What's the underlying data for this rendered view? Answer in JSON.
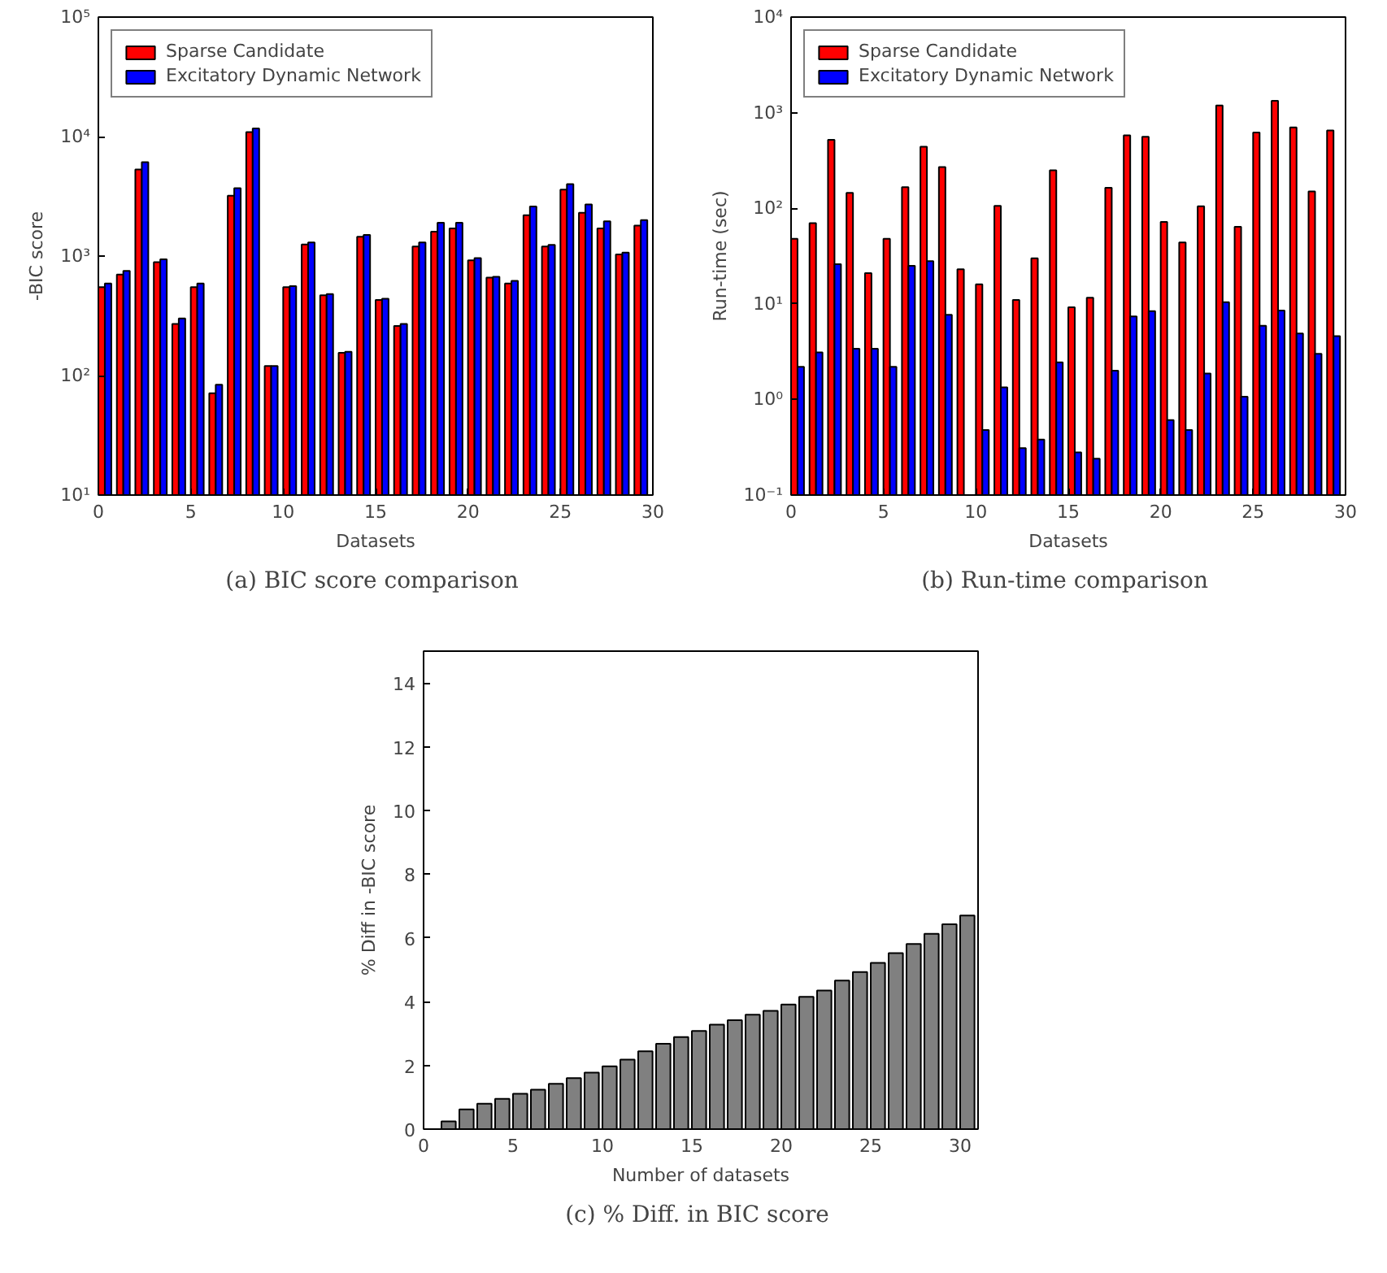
{
  "chart_data": [
    {
      "type": "bar",
      "xlabel": "Datasets",
      "ylabel": "-BIC score",
      "annotations": [
        "(a)  BIC score comparison"
      ],
      "log": "y",
      "legend": "top left",
      "grid": false,
      "x": [
        0,
        1,
        2,
        3,
        4,
        5,
        6,
        7,
        8,
        9,
        10,
        11,
        12,
        13,
        14,
        15,
        16,
        17,
        18,
        19,
        20,
        21,
        22,
        23,
        24,
        25,
        26,
        27,
        28,
        29
      ],
      "xlim": [
        0,
        30
      ],
      "xticks": [
        0,
        5,
        10,
        15,
        20,
        25,
        30
      ],
      "ylim": [
        10,
        100000
      ],
      "yticks": [
        {
          "value": 10,
          "label": "10¹"
        },
        {
          "value": 100,
          "label": "10²"
        },
        {
          "value": 1000,
          "label": "10³"
        },
        {
          "value": 10000,
          "label": "10⁴"
        },
        {
          "value": 100000,
          "label": "10⁵"
        }
      ],
      "series": [
        {
          "name": "Sparse Candidate",
          "color": "#ff0000",
          "values": [
            550,
            700,
            5300,
            890,
            270,
            550,
            71,
            3200,
            10900,
            120,
            550,
            1250,
            470,
            155,
            1450,
            430,
            260,
            1200,
            1600,
            1700,
            920,
            660,
            590,
            2200,
            1200,
            3600,
            2300,
            1700,
            1030,
            1800
          ]
        },
        {
          "name": "Excitatory Dynamic Network",
          "color": "#0000ff",
          "values": [
            590,
            750,
            6100,
            940,
            300,
            590,
            84,
            3700,
            11700,
            120,
            560,
            1300,
            480,
            158,
            1500,
            440,
            270,
            1300,
            1900,
            1900,
            960,
            670,
            620,
            2600,
            1240,
            4000,
            2700,
            1950,
            1070,
            2000
          ]
        }
      ]
    },
    {
      "type": "bar",
      "xlabel": "Datasets",
      "ylabel": "Run-time (sec)",
      "annotations": [
        "(b)  Run-time comparison"
      ],
      "log": "y",
      "legend": "top left",
      "grid": false,
      "x": [
        0,
        1,
        2,
        3,
        4,
        5,
        6,
        7,
        8,
        9,
        10,
        11,
        12,
        13,
        14,
        15,
        16,
        17,
        18,
        19,
        20,
        21,
        22,
        23,
        24,
        25,
        26,
        27,
        28,
        29
      ],
      "xlim": [
        0,
        30
      ],
      "xticks": [
        0,
        5,
        10,
        15,
        20,
        25,
        30
      ],
      "ylim": [
        0.1,
        10000
      ],
      "yticks": [
        {
          "value": 0.1,
          "label": "10⁻¹"
        },
        {
          "value": 1,
          "label": "10⁰"
        },
        {
          "value": 10,
          "label": "10¹"
        },
        {
          "value": 100,
          "label": "10²"
        },
        {
          "value": 1000,
          "label": "10³"
        },
        {
          "value": 10000,
          "label": "10⁴"
        }
      ],
      "series": [
        {
          "name": "Sparse Candidate",
          "color": "#ff0000",
          "values": [
            48,
            70,
            520,
            145,
            21,
            48,
            166,
            440,
            270,
            23,
            16,
            106,
            11,
            30,
            250,
            9.2,
            11.6,
            164,
            580,
            560,
            72,
            44,
            105,
            1190,
            64,
            620,
            1330,
            700,
            150,
            650
          ]
        },
        {
          "name": "Excitatory Dynamic Network",
          "color": "#0000ff",
          "values": [
            2.2,
            3.1,
            26,
            3.4,
            3.4,
            2.2,
            25,
            28,
            7.7,
            null,
            0.48,
            1.34,
            0.31,
            0.38,
            2.45,
            0.28,
            0.24,
            2.0,
            7.4,
            8.4,
            0.61,
            0.48,
            1.87,
            10.4,
            1.07,
            5.9,
            8.5,
            4.9,
            3.0,
            4.6
          ]
        }
      ]
    },
    {
      "type": "bar",
      "xlabel": "Number of datasets",
      "ylabel": "% Diff in -BIC score",
      "annotations": [
        "(c)  % Diff. in BIC score"
      ],
      "grid": false,
      "x": [
        1.4,
        2.4,
        3.4,
        4.4,
        5.4,
        6.4,
        7.4,
        8.4,
        9.4,
        10.4,
        11.4,
        12.4,
        13.4,
        14.4,
        15.4,
        16.4,
        17.4,
        18.4,
        19.4,
        20.4,
        21.4,
        22.4,
        23.4,
        24.4,
        25.4,
        26.4,
        27.4,
        28.4,
        29.4,
        30.4
      ],
      "xlim": [
        0,
        31
      ],
      "xticks": [
        0,
        5,
        10,
        15,
        20,
        25,
        30
      ],
      "ylim": [
        0,
        15
      ],
      "yticks": [
        0,
        2,
        4,
        6,
        8,
        10,
        12,
        14
      ],
      "series": [
        {
          "color": "#808080",
          "values": [
            0.24,
            0.62,
            0.8,
            0.95,
            1.11,
            1.24,
            1.42,
            1.6,
            1.77,
            1.97,
            2.18,
            2.44,
            2.68,
            2.89,
            3.08,
            3.28,
            3.42,
            3.59,
            3.71,
            3.91,
            4.15,
            4.35,
            4.66,
            4.93,
            5.22,
            5.52,
            5.81,
            6.13,
            6.43,
            6.7
          ]
        }
      ]
    }
  ]
}
